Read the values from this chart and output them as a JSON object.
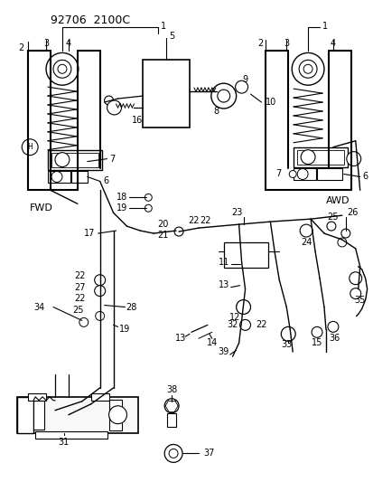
{
  "bg_color": "#ffffff",
  "fig_width": 4.14,
  "fig_height": 5.33,
  "dpi": 100,
  "header": "92706  2100C",
  "fwd_label": "FWD",
  "awd_label": "AWD",
  "h_label": "H"
}
